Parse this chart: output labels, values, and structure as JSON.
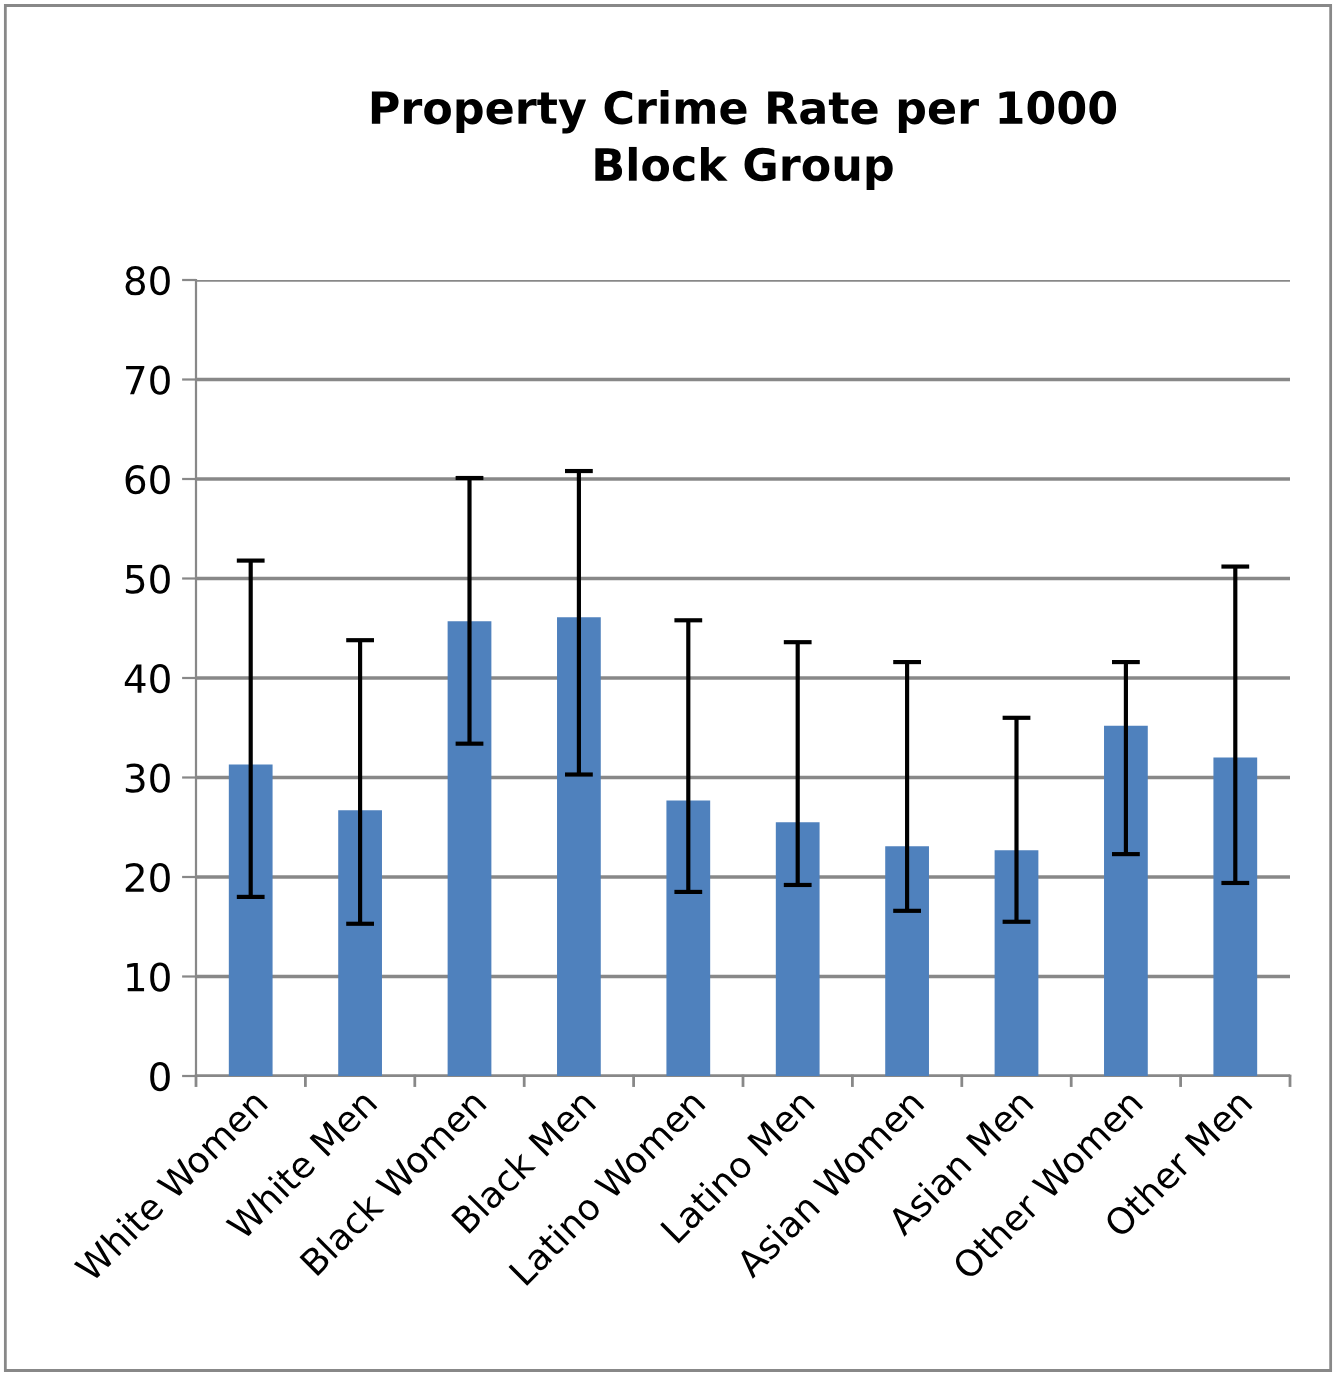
{
  "chart_data": {
    "type": "bar",
    "title": "Property Crime Rate per 1000\nBlock Group",
    "categories": [
      "White Women",
      "White Men",
      "Black Women",
      "Black Men",
      "Latino Women",
      "Latino Men",
      "Asian Women",
      "Asian Men",
      "Other Women",
      "Other Men"
    ],
    "values": [
      31.3,
      26.7,
      45.7,
      46.1,
      27.7,
      25.5,
      23.1,
      22.7,
      35.2,
      32.0
    ],
    "errors": [
      [
        18.0,
        51.8
      ],
      [
        15.3,
        43.8
      ],
      [
        33.4,
        60.1
      ],
      [
        30.3,
        60.8
      ],
      [
        18.5,
        45.8
      ],
      [
        19.2,
        43.6
      ],
      [
        16.6,
        41.6
      ],
      [
        15.5,
        36.0
      ],
      [
        22.3,
        41.6
      ],
      [
        19.4,
        51.2
      ]
    ],
    "color": "#4f81bd",
    "ylim": [
      0,
      80
    ],
    "yticks": [
      0,
      10,
      20,
      30,
      40,
      50,
      60,
      70,
      80
    ],
    "grid": "y"
  }
}
